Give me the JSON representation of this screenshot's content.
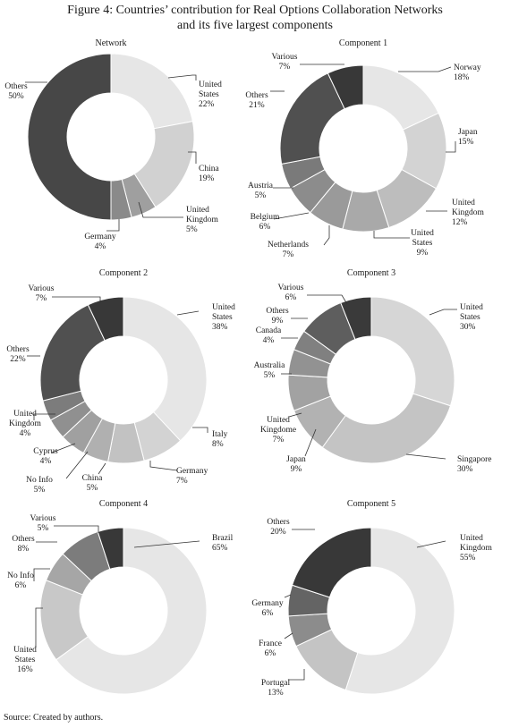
{
  "figure": {
    "title_line1": "Figure 4: Countries’ contribution for Real Options Collaboration Networks",
    "title_line2": "and its five largest components",
    "source": "Source: Created by authors."
  },
  "chart_data": [
    {
      "type": "pie",
      "title": "Network",
      "slices": [
        {
          "label": [
            "United",
            "States"
          ],
          "pct_label": "22%",
          "value": 22,
          "color": "#e6e6e6"
        },
        {
          "label": [
            "China"
          ],
          "pct_label": "19%",
          "value": 19,
          "color": "#d1d1d1"
        },
        {
          "label": [
            "United",
            "Kingdom"
          ],
          "pct_label": "5%",
          "value": 5,
          "color": "#9f9f9f"
        },
        {
          "label": [
            "Germany"
          ],
          "pct_label": "4%",
          "value": 4,
          "color": "#8a8a8a"
        },
        {
          "label": [
            "Others"
          ],
          "pct_label": "50%",
          "value": 50,
          "color": "#474747"
        }
      ]
    },
    {
      "type": "pie",
      "title": "Component 1",
      "slices": [
        {
          "label": [
            "Norway"
          ],
          "pct_label": "18%",
          "value": 18,
          "color": "#e6e6e6"
        },
        {
          "label": [
            "Japan"
          ],
          "pct_label": "15%",
          "value": 15,
          "color": "#d3d3d3"
        },
        {
          "label": [
            "United",
            "Kingdom"
          ],
          "pct_label": "12%",
          "value": 12,
          "color": "#bdbdbd"
        },
        {
          "label": [
            "United",
            "States"
          ],
          "pct_label": "9%",
          "value": 9,
          "color": "#a9a9a9"
        },
        {
          "label": [
            "Netherlands"
          ],
          "pct_label": "7%",
          "value": 7,
          "color": "#9a9a9a"
        },
        {
          "label": [
            "Belgium"
          ],
          "pct_label": "6%",
          "value": 6,
          "color": "#8c8c8c"
        },
        {
          "label": [
            "Austria"
          ],
          "pct_label": "5%",
          "value": 5,
          "color": "#7a7a7a"
        },
        {
          "label": [
            "Others"
          ],
          "pct_label": "21%",
          "value": 21,
          "color": "#505050"
        },
        {
          "label": [
            "Various"
          ],
          "pct_label": "7%",
          "value": 7,
          "color": "#383838"
        }
      ]
    },
    {
      "type": "pie",
      "title": "Component 2",
      "slices": [
        {
          "label": [
            "United",
            "States"
          ],
          "pct_label": "38%",
          "value": 38,
          "color": "#e6e6e6"
        },
        {
          "label": [
            "Italy"
          ],
          "pct_label": "8%",
          "value": 8,
          "color": "#d3d3d3"
        },
        {
          "label": [
            "Germany"
          ],
          "pct_label": "7%",
          "value": 7,
          "color": "#c2c2c2"
        },
        {
          "label": [
            "China"
          ],
          "pct_label": "5%",
          "value": 5,
          "color": "#b0b0b0"
        },
        {
          "label": [
            "No Info"
          ],
          "pct_label": "5%",
          "value": 5,
          "color": "#a0a0a0"
        },
        {
          "label": [
            "Cyprus"
          ],
          "pct_label": "4%",
          "value": 4,
          "color": "#909090"
        },
        {
          "label": [
            "United",
            "Kingdom"
          ],
          "pct_label": "4%",
          "value": 4,
          "color": "#7c7c7c"
        },
        {
          "label": [
            "Others"
          ],
          "pct_label": "22%",
          "value": 22,
          "color": "#505050"
        },
        {
          "label": [
            "Various"
          ],
          "pct_label": "7%",
          "value": 7,
          "color": "#383838"
        }
      ]
    },
    {
      "type": "pie",
      "title": "Component 3",
      "slices": [
        {
          "label": [
            "United",
            "States"
          ],
          "pct_label": "30%",
          "value": 30,
          "color": "#d6d6d6"
        },
        {
          "label": [
            "Singapore"
          ],
          "pct_label": "30%",
          "value": 30,
          "color": "#c4c4c4"
        },
        {
          "label": [
            "Japan"
          ],
          "pct_label": "9%",
          "value": 9,
          "color": "#b2b2b2"
        },
        {
          "label": [
            "United",
            "Kingdome"
          ],
          "pct_label": "7%",
          "value": 7,
          "color": "#a2a2a2"
        },
        {
          "label": [
            "Australia"
          ],
          "pct_label": "5%",
          "value": 5,
          "color": "#929292"
        },
        {
          "label": [
            "Canada"
          ],
          "pct_label": "4%",
          "value": 4,
          "color": "#808080"
        },
        {
          "label": [
            "Others"
          ],
          "pct_label": "9%",
          "value": 9,
          "color": "#5e5e5e"
        },
        {
          "label": [
            "Various"
          ],
          "pct_label": "6%",
          "value": 6,
          "color": "#3a3a3a"
        }
      ]
    },
    {
      "type": "pie",
      "title": "Component 4",
      "slices": [
        {
          "label": [
            "Brazil"
          ],
          "pct_label": "65%",
          "value": 65,
          "color": "#e6e6e6"
        },
        {
          "label": [
            "United",
            "States"
          ],
          "pct_label": "16%",
          "value": 16,
          "color": "#c8c8c8"
        },
        {
          "label": [
            "No Info"
          ],
          "pct_label": "6%",
          "value": 6,
          "color": "#a6a6a6"
        },
        {
          "label": [
            "Others"
          ],
          "pct_label": "8%",
          "value": 8,
          "color": "#7c7c7c"
        },
        {
          "label": [
            "Various"
          ],
          "pct_label": "5%",
          "value": 5,
          "color": "#383838"
        }
      ]
    },
    {
      "type": "pie",
      "title": "Component 5",
      "slices": [
        {
          "label": [
            "United",
            "Kingdom"
          ],
          "pct_label": "55%",
          "value": 55,
          "color": "#e6e6e6"
        },
        {
          "label": [
            "Portugal"
          ],
          "pct_label": "13%",
          "value": 13,
          "color": "#c4c4c4"
        },
        {
          "label": [
            "France"
          ],
          "pct_label": "6%",
          "value": 6,
          "color": "#8c8c8c"
        },
        {
          "label": [
            "Germany"
          ],
          "pct_label": "6%",
          "value": 6,
          "color": "#646464"
        },
        {
          "label": [
            "Others"
          ],
          "pct_label": "20%",
          "value": 20,
          "color": "#383838"
        }
      ]
    }
  ]
}
